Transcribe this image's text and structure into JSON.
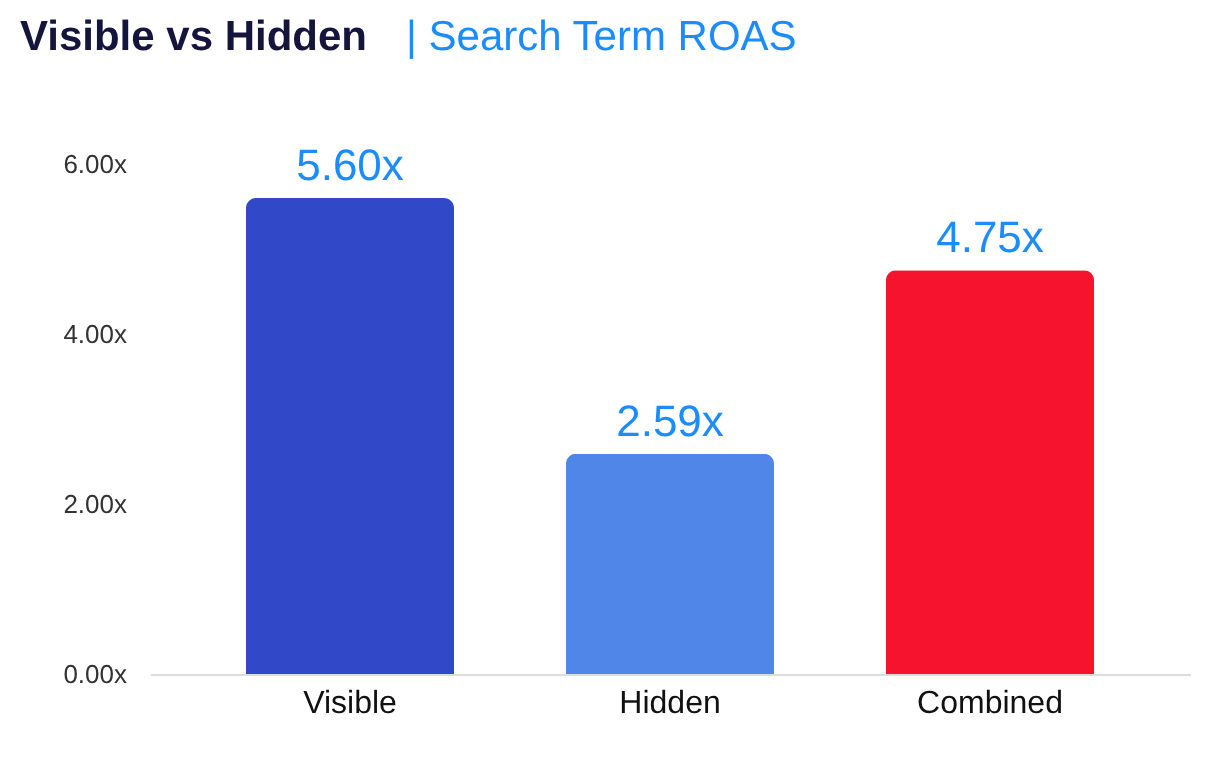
{
  "chart_data": {
    "type": "bar",
    "title": "Visible vs Hidden",
    "subtitle": "| Search Term ROAS",
    "categories": [
      "Visible",
      "Hidden",
      "Combined"
    ],
    "values": [
      5.6,
      2.59,
      4.75
    ],
    "colors": [
      "#3148c8",
      "#4f86e8",
      "#f5132e"
    ],
    "value_labels": [
      "5.60x",
      "2.59x",
      "4.75x"
    ],
    "ylim": [
      0,
      6
    ],
    "yticks": [
      {
        "value": 0,
        "label": "0.00x"
      },
      {
        "value": 2,
        "label": "2.00x"
      },
      {
        "value": 4,
        "label": "4.00x"
      },
      {
        "value": 6,
        "label": "6.00x"
      }
    ],
    "grid": false
  }
}
